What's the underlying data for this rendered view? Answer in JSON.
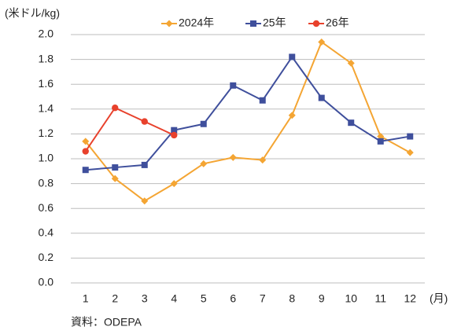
{
  "chart_data": {
    "type": "line",
    "y_label": "(米ドル/kg)",
    "x_label": "(月)",
    "source": "資料：ODEPA",
    "categories": [
      "1",
      "2",
      "3",
      "4",
      "5",
      "6",
      "7",
      "8",
      "9",
      "10",
      "11",
      "12"
    ],
    "series": [
      {
        "name": "2024年",
        "color": "#f4a533",
        "marker": "diamond",
        "values": [
          1.14,
          0.84,
          0.66,
          0.8,
          0.96,
          1.01,
          0.99,
          1.35,
          1.94,
          1.77,
          1.18,
          1.05
        ]
      },
      {
        "name": "25年",
        "color": "#3f4f9c",
        "marker": "square",
        "values": [
          0.91,
          0.93,
          0.95,
          1.23,
          1.28,
          1.59,
          1.47,
          1.82,
          1.49,
          1.29,
          1.14,
          1.18
        ]
      },
      {
        "name": "26年",
        "color": "#e8412c",
        "marker": "circle",
        "values": [
          1.06,
          1.41,
          1.3,
          1.19,
          null,
          null,
          null,
          null,
          null,
          null,
          null,
          null
        ]
      }
    ],
    "ylim": [
      0,
      2
    ],
    "yticks": [
      {
        "value": 0,
        "label": "0.0"
      },
      0.2,
      0.4,
      0.6,
      0.8,
      {
        "value": 1,
        "label": "1.0"
      },
      1.2,
      1.4,
      1.6,
      1.8,
      {
        "value": 2,
        "label": "2.0"
      }
    ],
    "grid": true,
    "legend": "top"
  }
}
